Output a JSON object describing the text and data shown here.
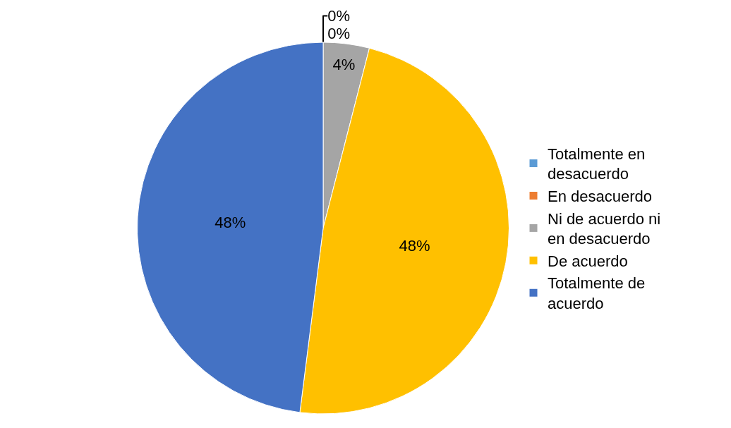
{
  "chart_data": {
    "type": "pie",
    "categories": [
      "Totalmente en desacuerdo",
      "En desacuerdo",
      "Ni de acuerdo ni en desacuerdo",
      "De acuerdo",
      "Totalmente de acuerdo"
    ],
    "values": [
      0,
      0,
      4,
      48,
      48
    ],
    "colors": [
      "#5b9bd5",
      "#ed7d31",
      "#a5a5a5",
      "#ffc000",
      "#4472c4"
    ],
    "value_labels": [
      "0%",
      "0%",
      "4%",
      "48%",
      "48%"
    ],
    "legend": "right"
  }
}
